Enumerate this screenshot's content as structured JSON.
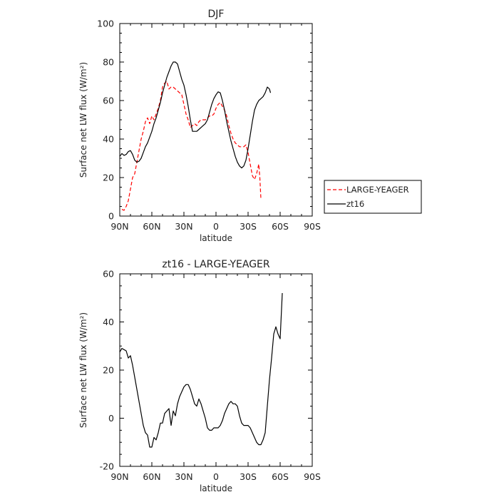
{
  "chart_data": [
    {
      "type": "line",
      "title": "DJF",
      "xlabel": "latitude",
      "ylabel": "Surface net LW flux (W/m²)",
      "xlim": [
        -90,
        90
      ],
      "ylim": [
        0,
        100
      ],
      "x_ticks": [
        -90,
        -60,
        -30,
        0,
        30,
        60,
        90
      ],
      "x_tick_labels": [
        "90N",
        "60N",
        "30N",
        "0",
        "30S",
        "60S",
        "90S"
      ],
      "y_ticks": [
        0,
        20,
        40,
        60,
        80,
        100
      ],
      "y_tick_labels": [
        "0",
        "20",
        "40",
        "60",
        "80",
        "100"
      ],
      "grid": false,
      "legend_position": "outside right",
      "series": [
        {
          "name": "LARGE-YEAGER",
          "color": "#ff0000",
          "dash": "dashed",
          "points": [
            [
              -88,
              3.5
            ],
            [
              -86,
              3
            ],
            [
              -84,
              5
            ],
            [
              -82,
              8
            ],
            [
              -80,
              14
            ],
            [
              -78,
              20
            ],
            [
              -76,
              22
            ],
            [
              -74,
              28
            ],
            [
              -72,
              34
            ],
            [
              -70,
              40
            ],
            [
              -68,
              44
            ],
            [
              -66,
              49
            ],
            [
              -64,
              51
            ],
            [
              -62,
              48
            ],
            [
              -60,
              52
            ],
            [
              -58,
              50
            ],
            [
              -56,
              53
            ],
            [
              -54,
              56
            ],
            [
              -52,
              60
            ],
            [
              -50,
              67
            ],
            [
              -48,
              69
            ],
            [
              -46,
              70
            ],
            [
              -44,
              66
            ],
            [
              -42,
              67
            ],
            [
              -40,
              67
            ],
            [
              -38,
              66
            ],
            [
              -36,
              65
            ],
            [
              -34,
              64
            ],
            [
              -32,
              63
            ],
            [
              -30,
              58
            ],
            [
              -28,
              53
            ],
            [
              -26,
              50
            ],
            [
              -24,
              46
            ],
            [
              -22,
              47
            ],
            [
              -20,
              48
            ],
            [
              -18,
              47
            ],
            [
              -16,
              49
            ],
            [
              -14,
              50
            ],
            [
              -12,
              50
            ],
            [
              -10,
              50
            ],
            [
              -8,
              51
            ],
            [
              -6,
              52
            ],
            [
              -4,
              52
            ],
            [
              -2,
              53
            ],
            [
              0,
              56
            ],
            [
              2,
              58
            ],
            [
              4,
              59
            ],
            [
              6,
              57
            ],
            [
              8,
              55
            ],
            [
              10,
              52
            ],
            [
              12,
              47
            ],
            [
              14,
              43
            ],
            [
              16,
              40
            ],
            [
              18,
              38
            ],
            [
              20,
              37
            ],
            [
              22,
              36
            ],
            [
              24,
              36
            ],
            [
              26,
              36
            ],
            [
              28,
              37
            ],
            [
              30,
              33
            ],
            [
              32,
              27
            ],
            [
              34,
              21
            ],
            [
              36,
              19
            ],
            [
              38,
              22
            ],
            [
              40,
              27
            ],
            [
              41,
              20
            ],
            [
              42,
              9
            ]
          ]
        },
        {
          "name": "zt16",
          "color": "#000000",
          "dash": "solid",
          "points": [
            [
              -90,
              31
            ],
            [
              -88,
              32.5
            ],
            [
              -86,
              31.5
            ],
            [
              -84,
              32
            ],
            [
              -82,
              33.5
            ],
            [
              -80,
              34
            ],
            [
              -78,
              32
            ],
            [
              -76,
              29
            ],
            [
              -74,
              28
            ],
            [
              -72,
              28.5
            ],
            [
              -70,
              30
            ],
            [
              -68,
              33
            ],
            [
              -66,
              36
            ],
            [
              -64,
              38
            ],
            [
              -62,
              41
            ],
            [
              -60,
              44
            ],
            [
              -58,
              48
            ],
            [
              -56,
              51
            ],
            [
              -54,
              55
            ],
            [
              -52,
              59
            ],
            [
              -50,
              64
            ],
            [
              -48,
              68
            ],
            [
              -46,
              72
            ],
            [
              -44,
              75
            ],
            [
              -42,
              78
            ],
            [
              -40,
              80
            ],
            [
              -38,
              80
            ],
            [
              -36,
              79
            ],
            [
              -34,
              75
            ],
            [
              -32,
              71
            ],
            [
              -30,
              68
            ],
            [
              -28,
              63
            ],
            [
              -26,
              57
            ],
            [
              -24,
              50
            ],
            [
              -22,
              44
            ],
            [
              -20,
              44
            ],
            [
              -18,
              44
            ],
            [
              -16,
              45
            ],
            [
              -14,
              46
            ],
            [
              -12,
              47
            ],
            [
              -10,
              48
            ],
            [
              -8,
              50
            ],
            [
              -6,
              54
            ],
            [
              -4,
              58
            ],
            [
              -2,
              61
            ],
            [
              0,
              63
            ],
            [
              2,
              64.5
            ],
            [
              4,
              64
            ],
            [
              6,
              60
            ],
            [
              8,
              55
            ],
            [
              10,
              49
            ],
            [
              12,
              44
            ],
            [
              14,
              39
            ],
            [
              16,
              35
            ],
            [
              18,
              31
            ],
            [
              20,
              28
            ],
            [
              22,
              26
            ],
            [
              24,
              25
            ],
            [
              26,
              26
            ],
            [
              28,
              29
            ],
            [
              30,
              35
            ],
            [
              32,
              42
            ],
            [
              34,
              49
            ],
            [
              36,
              55
            ],
            [
              38,
              58
            ],
            [
              40,
              60
            ],
            [
              42,
              61
            ],
            [
              44,
              62
            ],
            [
              46,
              64
            ],
            [
              48,
              67
            ],
            [
              50,
              66
            ],
            [
              51,
              64
            ]
          ]
        }
      ]
    },
    {
      "type": "line",
      "title": "zt16 - LARGE-YEAGER",
      "xlabel": "latitude",
      "ylabel": "Surface net LW flux (W/m²)",
      "xlim": [
        -90,
        90
      ],
      "ylim": [
        -20,
        60
      ],
      "x_ticks": [
        -90,
        -60,
        -30,
        0,
        30,
        60,
        90
      ],
      "x_tick_labels": [
        "90N",
        "60N",
        "30N",
        "0",
        "30S",
        "60S",
        "90S"
      ],
      "y_ticks": [
        -20,
        0,
        20,
        40,
        60
      ],
      "y_tick_labels": [
        "-20",
        "0",
        "20",
        "40",
        "60"
      ],
      "grid": false,
      "series": [
        {
          "name": "zt16 - LARGE-YEAGER",
          "color": "#000000",
          "dash": "solid",
          "points": [
            [
              -90,
              27.5
            ],
            [
              -88,
              29
            ],
            [
              -86,
              28.5
            ],
            [
              -84,
              28
            ],
            [
              -82,
              25
            ],
            [
              -80,
              26
            ],
            [
              -78,
              22
            ],
            [
              -76,
              17
            ],
            [
              -74,
              12
            ],
            [
              -72,
              7
            ],
            [
              -70,
              2
            ],
            [
              -68,
              -3
            ],
            [
              -66,
              -6
            ],
            [
              -64,
              -7
            ],
            [
              -62,
              -12
            ],
            [
              -60,
              -12
            ],
            [
              -58,
              -8
            ],
            [
              -56,
              -9
            ],
            [
              -54,
              -6
            ],
            [
              -52,
              -2
            ],
            [
              -50,
              -2
            ],
            [
              -48,
              2
            ],
            [
              -46,
              3
            ],
            [
              -44,
              4
            ],
            [
              -42,
              -3
            ],
            [
              -40,
              3
            ],
            [
              -38,
              1
            ],
            [
              -36,
              6
            ],
            [
              -34,
              9
            ],
            [
              -32,
              11
            ],
            [
              -30,
              13
            ],
            [
              -28,
              14
            ],
            [
              -26,
              14
            ],
            [
              -24,
              12
            ],
            [
              -22,
              9
            ],
            [
              -20,
              6
            ],
            [
              -18,
              5
            ],
            [
              -16,
              8
            ],
            [
              -14,
              6
            ],
            [
              -12,
              3
            ],
            [
              -10,
              0
            ],
            [
              -8,
              -4
            ],
            [
              -6,
              -5
            ],
            [
              -4,
              -5
            ],
            [
              -2,
              -4
            ],
            [
              0,
              -4
            ],
            [
              2,
              -4
            ],
            [
              4,
              -3
            ],
            [
              6,
              -1
            ],
            [
              8,
              2
            ],
            [
              10,
              4
            ],
            [
              12,
              6
            ],
            [
              14,
              7
            ],
            [
              16,
              6
            ],
            [
              18,
              6
            ],
            [
              20,
              5
            ],
            [
              22,
              1
            ],
            [
              24,
              -2
            ],
            [
              26,
              -3
            ],
            [
              28,
              -3
            ],
            [
              30,
              -3
            ],
            [
              32,
              -4
            ],
            [
              34,
              -6
            ],
            [
              36,
              -8
            ],
            [
              38,
              -10
            ],
            [
              40,
              -11
            ],
            [
              42,
              -11
            ],
            [
              44,
              -9
            ],
            [
              46,
              -6
            ],
            [
              48,
              5
            ],
            [
              50,
              16
            ],
            [
              52,
              25
            ],
            [
              54,
              35
            ],
            [
              56,
              38
            ],
            [
              58,
              35
            ],
            [
              60,
              33
            ],
            [
              62,
              52
            ]
          ]
        }
      ]
    }
  ]
}
